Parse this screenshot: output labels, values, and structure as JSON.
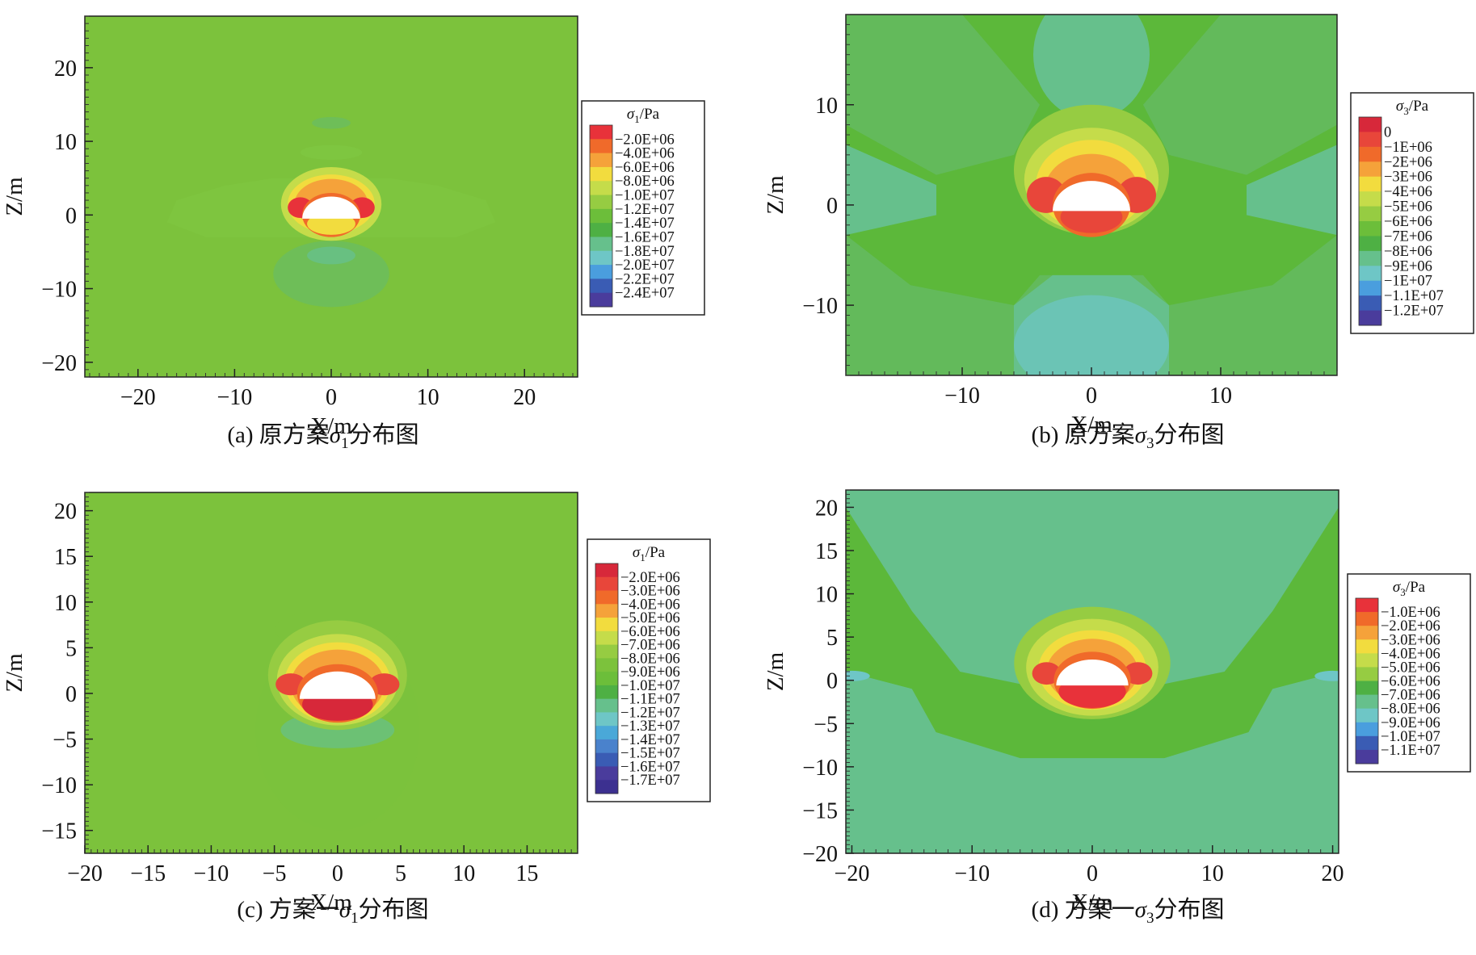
{
  "panels": [
    {
      "id": "a",
      "caption": {
        "prefix": "(a) 原方案",
        "symbol": "σ",
        "subscript": "1",
        "suffix": "分布图"
      },
      "legend": {
        "title_symbol": "σ",
        "title_subscript": "1",
        "title_unit": "/Pa",
        "levels": [
          "−2.0E+06",
          "−4.0E+06",
          "−6.0E+06",
          "−8.0E+06",
          "−1.0E+07",
          "−1.2E+07",
          "−1.4E+07",
          "−1.6E+07",
          "−1.8E+07",
          "−2.0E+07",
          "−2.2E+07",
          "−2.4E+07"
        ],
        "colors": [
          "#e8323a",
          "#f06a2a",
          "#f5a23a",
          "#f2dc3e",
          "#c5dc4a",
          "#96cc42",
          "#6cbe3a",
          "#4eb044",
          "#66c08c",
          "#6ec6c6",
          "#4a9ede",
          "#3a5cb4",
          "#4a3c9c"
        ]
      }
    },
    {
      "id": "b",
      "caption": {
        "prefix": "(b) 原方案",
        "symbol": "σ",
        "subscript": "3",
        "suffix": "分布图"
      },
      "legend": {
        "title_symbol": "σ",
        "title_subscript": "3",
        "title_unit": "/Pa",
        "levels": [
          "0",
          "−1E+06",
          "−2E+06",
          "−3E+06",
          "−4E+06",
          "−5E+06",
          "−6E+06",
          "−7E+06",
          "−8E+06",
          "−9E+06",
          "−1E+07",
          "−1.1E+07",
          "−1.2E+07"
        ],
        "colors": [
          "#d7283a",
          "#e8463a",
          "#f06a2a",
          "#f5a23a",
          "#f2dc3e",
          "#c5dc4a",
          "#96cc42",
          "#6cbe3a",
          "#4eb044",
          "#66c08c",
          "#6ec6c6",
          "#4a9ede",
          "#3a5cb4",
          "#4a3c9c"
        ]
      }
    },
    {
      "id": "c",
      "caption": {
        "prefix": "(c) 方案一",
        "symbol": "σ",
        "subscript": "1",
        "suffix": "分布图"
      },
      "legend": {
        "title_symbol": "σ",
        "title_subscript": "1",
        "title_unit": "/Pa",
        "levels": [
          "−2.0E+06",
          "−3.0E+06",
          "−4.0E+06",
          "−5.0E+06",
          "−6.0E+06",
          "−7.0E+06",
          "−8.0E+06",
          "−9.0E+06",
          "−1.0E+07",
          "−1.1E+07",
          "−1.2E+07",
          "−1.3E+07",
          "−1.4E+07",
          "−1.5E+07",
          "−1.6E+07",
          "−1.7E+07"
        ],
        "colors": [
          "#d7283a",
          "#e8463a",
          "#f06a2a",
          "#f5a23a",
          "#f2dc3e",
          "#c5dc4a",
          "#96cc42",
          "#7cc23c",
          "#6cbe3a",
          "#4eb044",
          "#66c08c",
          "#6ec6c6",
          "#4aa8d8",
          "#4a82cc",
          "#3a5cb4",
          "#4a3c9c",
          "#3c3090"
        ]
      }
    },
    {
      "id": "d",
      "caption": {
        "prefix": "(d) 方案一",
        "symbol": "σ",
        "subscript": "3",
        "suffix": "分布图"
      },
      "legend": {
        "title_symbol": "σ",
        "title_subscript": "3",
        "title_unit": "/Pa",
        "levels": [
          "−1.0E+06",
          "−2.0E+06",
          "−3.0E+06",
          "−4.0E+06",
          "−5.0E+06",
          "−6.0E+06",
          "−7.0E+06",
          "−8.0E+06",
          "−9.0E+06",
          "−1.0E+07",
          "−1.1E+07"
        ],
        "colors": [
          "#e8323a",
          "#f06a2a",
          "#f5a23a",
          "#f2dc3e",
          "#c5dc4a",
          "#96cc42",
          "#4eb044",
          "#66c08c",
          "#6ec6c6",
          "#4a9ede",
          "#3a5cb4",
          "#4a3c9c"
        ]
      }
    }
  ],
  "chart_data": [
    {
      "type": "heatmap",
      "panel": "a",
      "xlabel": "X/m",
      "ylabel": "Z/m",
      "xlim": [
        -25.5,
        25.5
      ],
      "ylim": [
        -22,
        27
      ],
      "xticks": [
        -20,
        -10,
        0,
        10,
        20
      ],
      "yticks": [
        -20,
        -10,
        0,
        10,
        20
      ],
      "background_level": "−1.2E+07"
    },
    {
      "type": "heatmap",
      "panel": "b",
      "xlabel": "X/m",
      "ylabel": "Z/m",
      "xlim": [
        -19,
        19
      ],
      "ylim": [
        -17,
        19
      ],
      "xticks": [
        -10,
        0,
        10
      ],
      "yticks": [
        -10,
        0,
        10
      ],
      "background_level": "−6E+06"
    },
    {
      "type": "heatmap",
      "panel": "c",
      "xlabel": "X/m",
      "ylabel": "Z/m",
      "xlim": [
        -20,
        19
      ],
      "ylim": [
        -17.5,
        22
      ],
      "xticks": [
        -20,
        -15,
        -10,
        -5,
        0,
        5,
        10,
        15
      ],
      "yticks": [
        -15,
        -10,
        -5,
        0,
        5,
        10,
        15,
        20
      ],
      "background_level": "−8.0E+06"
    },
    {
      "type": "heatmap",
      "panel": "d",
      "xlabel": "X/m",
      "ylabel": "Z/m",
      "xlim": [
        -20.5,
        20.5
      ],
      "ylim": [
        -20,
        22
      ],
      "xticks": [
        -20,
        -10,
        0,
        10,
        20
      ],
      "yticks": [
        -20,
        -15,
        -10,
        -5,
        0,
        5,
        10,
        15,
        20
      ],
      "background_level": "−6.0E+06"
    }
  ]
}
